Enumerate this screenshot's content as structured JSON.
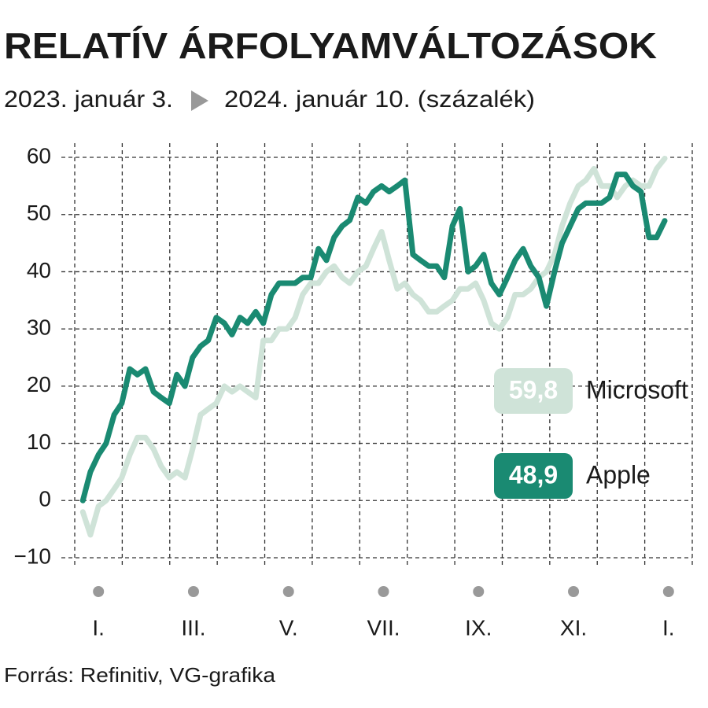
{
  "chart_data": {
    "type": "line",
    "title": "RELATÍV ÁRFOLYAMVÁLTOZÁSOK",
    "subtitle_start": "2023. január 3.",
    "subtitle_end": "2024. január 10. (százalék)",
    "source": "Forrás: Refinitiv, VG-grafika",
    "x": [
      0.17,
      0.33,
      0.5,
      0.66,
      0.83,
      0.99,
      1.16,
      1.32,
      1.49,
      1.66,
      1.82,
      1.99,
      2.15,
      2.32,
      2.48,
      2.65,
      2.81,
      2.98,
      3.15,
      3.31,
      3.48,
      3.64,
      3.81,
      3.97,
      4.14,
      4.3,
      4.47,
      4.64,
      4.8,
      4.97,
      5.13,
      5.3,
      5.46,
      5.63,
      5.79,
      5.96,
      6.13,
      6.29,
      6.46,
      6.62,
      6.79,
      6.95,
      7.12,
      7.28,
      7.45,
      7.62,
      7.78,
      7.95,
      8.11,
      8.28,
      8.44,
      8.61,
      8.77,
      8.94,
      9.11,
      9.27,
      9.44,
      9.6,
      9.77,
      9.93,
      10.1,
      10.26,
      10.43,
      10.6,
      10.76,
      10.93,
      11.09,
      11.26,
      11.42,
      11.59,
      11.75,
      11.92,
      12.09,
      12.25,
      12.42
    ],
    "series": [
      {
        "name": "Microsoft",
        "color": "#cfe3d8",
        "label": "59,8",
        "values": [
          -2,
          -6,
          -1,
          0,
          2,
          4,
          8,
          11,
          11,
          9,
          6,
          4,
          5,
          4,
          9,
          15,
          16,
          17,
          20,
          19,
          20,
          19,
          18,
          28,
          28,
          30,
          30,
          32,
          36,
          38,
          38,
          40,
          41,
          39,
          38,
          40,
          41,
          44,
          47,
          42,
          37,
          38,
          36,
          35,
          33,
          33,
          34,
          35,
          37,
          37,
          38,
          35,
          31,
          30,
          32,
          36,
          36,
          37,
          39,
          40,
          43,
          48,
          52,
          55,
          56,
          58,
          55,
          55,
          53,
          55,
          56,
          55,
          55,
          58,
          59.8
        ]
      },
      {
        "name": "Apple",
        "color": "#1a8a72",
        "label": "48,9",
        "values": [
          0,
          5,
          8,
          10,
          15,
          17,
          23,
          22,
          23,
          19,
          18,
          17,
          22,
          20,
          25,
          27,
          28,
          32,
          31,
          29,
          32,
          31,
          33,
          31,
          36,
          38,
          38,
          38,
          39,
          39,
          44,
          42,
          46,
          48,
          49,
          53,
          52,
          54,
          55,
          54,
          55,
          56,
          43,
          42,
          41,
          41,
          39,
          48,
          51,
          40,
          41,
          43,
          38,
          36,
          39,
          42,
          44,
          41,
          39,
          34,
          40,
          45,
          48,
          51,
          52,
          52,
          52,
          53,
          57,
          57,
          55,
          54,
          46,
          46,
          48.9
        ]
      }
    ],
    "xlim": [
      0,
      13
    ],
    "xticks": [
      {
        "value": 0.5,
        "label": "I."
      },
      {
        "value": 2.5,
        "label": "III."
      },
      {
        "value": 4.5,
        "label": "V."
      },
      {
        "value": 6.5,
        "label": "VII."
      },
      {
        "value": 8.5,
        "label": "IX."
      },
      {
        "value": 10.5,
        "label": "XI."
      },
      {
        "value": 12.5,
        "label": "I."
      }
    ],
    "x_gridlines": [
      0,
      1,
      2,
      3,
      4,
      5,
      6,
      7,
      8,
      9,
      10,
      11,
      12,
      13
    ],
    "ylim": [
      -10,
      60
    ],
    "yticks": [
      {
        "value": -10,
        "label": "−10"
      },
      0,
      10,
      20,
      30,
      40,
      50,
      60
    ],
    "grid": true
  }
}
